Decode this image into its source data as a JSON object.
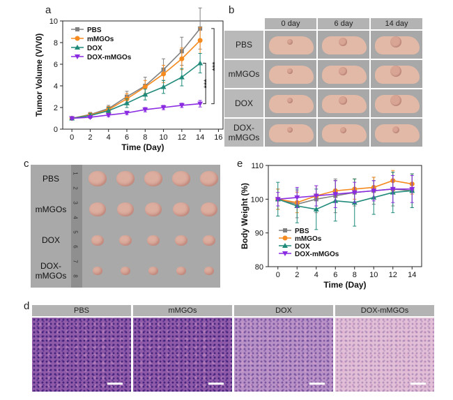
{
  "panels": {
    "a": "a",
    "b": "b",
    "c": "c",
    "d": "d",
    "e": "e"
  },
  "groups": [
    "PBS",
    "mMGOs",
    "DOX",
    "DOX-mMGOs"
  ],
  "colors": {
    "PBS": "#808080",
    "mMGOs": "#f58a1f",
    "DOX": "#1f8a7a",
    "DOX-mMGOs": "#8a2be2",
    "label_bg": "#b9b9b9",
    "header_bg": "#b3b3b3",
    "photo_bg": "#a8a8a8",
    "pig_skin": "#e2b9a6",
    "ruler_bg": "#8f8f8f",
    "tumor": "#dcaea0",
    "he_pink": "#c97fb0",
    "he_purple": "#5b3f9a"
  },
  "panel_b": {
    "headers": [
      "0 day",
      "6 day",
      "14 day"
    ],
    "rows": [
      "PBS",
      "mMGOs",
      "DOX",
      "DOX-\nmMGOs"
    ]
  },
  "panel_c": {
    "rows": [
      "PBS",
      "mMGOs",
      "DOX",
      "DOX-\nmMGOs"
    ],
    "ruler_marks": [
      "1",
      "2",
      "3",
      "4",
      "5",
      "6",
      "7",
      "8"
    ]
  },
  "panel_d": {
    "headers": [
      "PBS",
      "mMGOs",
      "DOX",
      "DOX-mMGOs"
    ]
  },
  "significance": [
    "***",
    "***"
  ],
  "chart_data": [
    {
      "type": "line",
      "panel": "a",
      "xlabel": "Time (Day)",
      "ylabel": "Tumor Volume (V/V0)",
      "x": [
        0,
        2,
        4,
        6,
        8,
        10,
        12,
        14
      ],
      "xticks": [
        0,
        2,
        4,
        6,
        8,
        10,
        12,
        14,
        16
      ],
      "yticks": [
        0,
        2,
        4,
        6,
        8,
        10
      ],
      "xlim": [
        -1,
        16.5
      ],
      "ylim": [
        0,
        10
      ],
      "legend_position": "top-left",
      "series": [
        {
          "name": "PBS",
          "marker": "square",
          "values": [
            1.0,
            1.35,
            1.9,
            3.0,
            4.0,
            5.5,
            7.2,
            9.3
          ],
          "errors": [
            0.1,
            0.2,
            0.3,
            0.5,
            0.8,
            1.0,
            1.3,
            1.9
          ]
        },
        {
          "name": "mMGOs",
          "marker": "circle",
          "values": [
            1.0,
            1.3,
            1.8,
            2.8,
            3.9,
            5.1,
            6.5,
            8.2
          ],
          "errors": [
            0.1,
            0.2,
            0.3,
            0.5,
            0.6,
            0.8,
            1.0,
            1.2
          ]
        },
        {
          "name": "DOX",
          "marker": "triangle",
          "values": [
            1.0,
            1.25,
            1.7,
            2.4,
            3.2,
            3.9,
            4.8,
            6.1
          ],
          "errors": [
            0.1,
            0.2,
            0.3,
            0.4,
            0.5,
            0.6,
            0.8,
            0.9
          ]
        },
        {
          "name": "DOX-mMGOs",
          "marker": "triangle-down",
          "values": [
            1.0,
            1.1,
            1.3,
            1.5,
            1.8,
            2.0,
            2.2,
            2.35
          ],
          "errors": [
            0.1,
            0.1,
            0.15,
            0.15,
            0.2,
            0.2,
            0.2,
            0.3
          ]
        }
      ]
    },
    {
      "type": "line",
      "panel": "e",
      "xlabel": "Time (Day)",
      "ylabel": "Body Weight (%)",
      "x": [
        0,
        2,
        4,
        6,
        8,
        10,
        12,
        14
      ],
      "xticks": [
        0,
        2,
        4,
        6,
        8,
        10,
        12,
        14
      ],
      "yticks": [
        80,
        90,
        100,
        110
      ],
      "xlim": [
        -1,
        15
      ],
      "ylim": [
        80,
        110
      ],
      "legend_position": "bottom-left",
      "series": [
        {
          "name": "PBS",
          "marker": "square",
          "values": [
            100,
            98.5,
            100,
            101,
            102,
            102.5,
            103,
            102.5
          ],
          "errors": [
            3,
            4,
            4,
            5,
            4,
            4,
            5,
            5
          ]
        },
        {
          "name": "mMGOs",
          "marker": "circle",
          "values": [
            100,
            99,
            101,
            102.5,
            103,
            103.5,
            105.5,
            104.5
          ],
          "errors": [
            3,
            3,
            3,
            3,
            3,
            3,
            3,
            3
          ]
        },
        {
          "name": "DOX",
          "marker": "triangle",
          "values": [
            100,
            98,
            97,
            99.5,
            99,
            100.5,
            102,
            102.5
          ],
          "errors": [
            5,
            5,
            6,
            6,
            7,
            5,
            6,
            5
          ]
        },
        {
          "name": "DOX-mMGOs",
          "marker": "triangle-down",
          "values": [
            100,
            100.5,
            101,
            101.5,
            102,
            102.5,
            103,
            103
          ],
          "errors": [
            2,
            3,
            3,
            4,
            3,
            3,
            4,
            4
          ]
        }
      ]
    }
  ]
}
